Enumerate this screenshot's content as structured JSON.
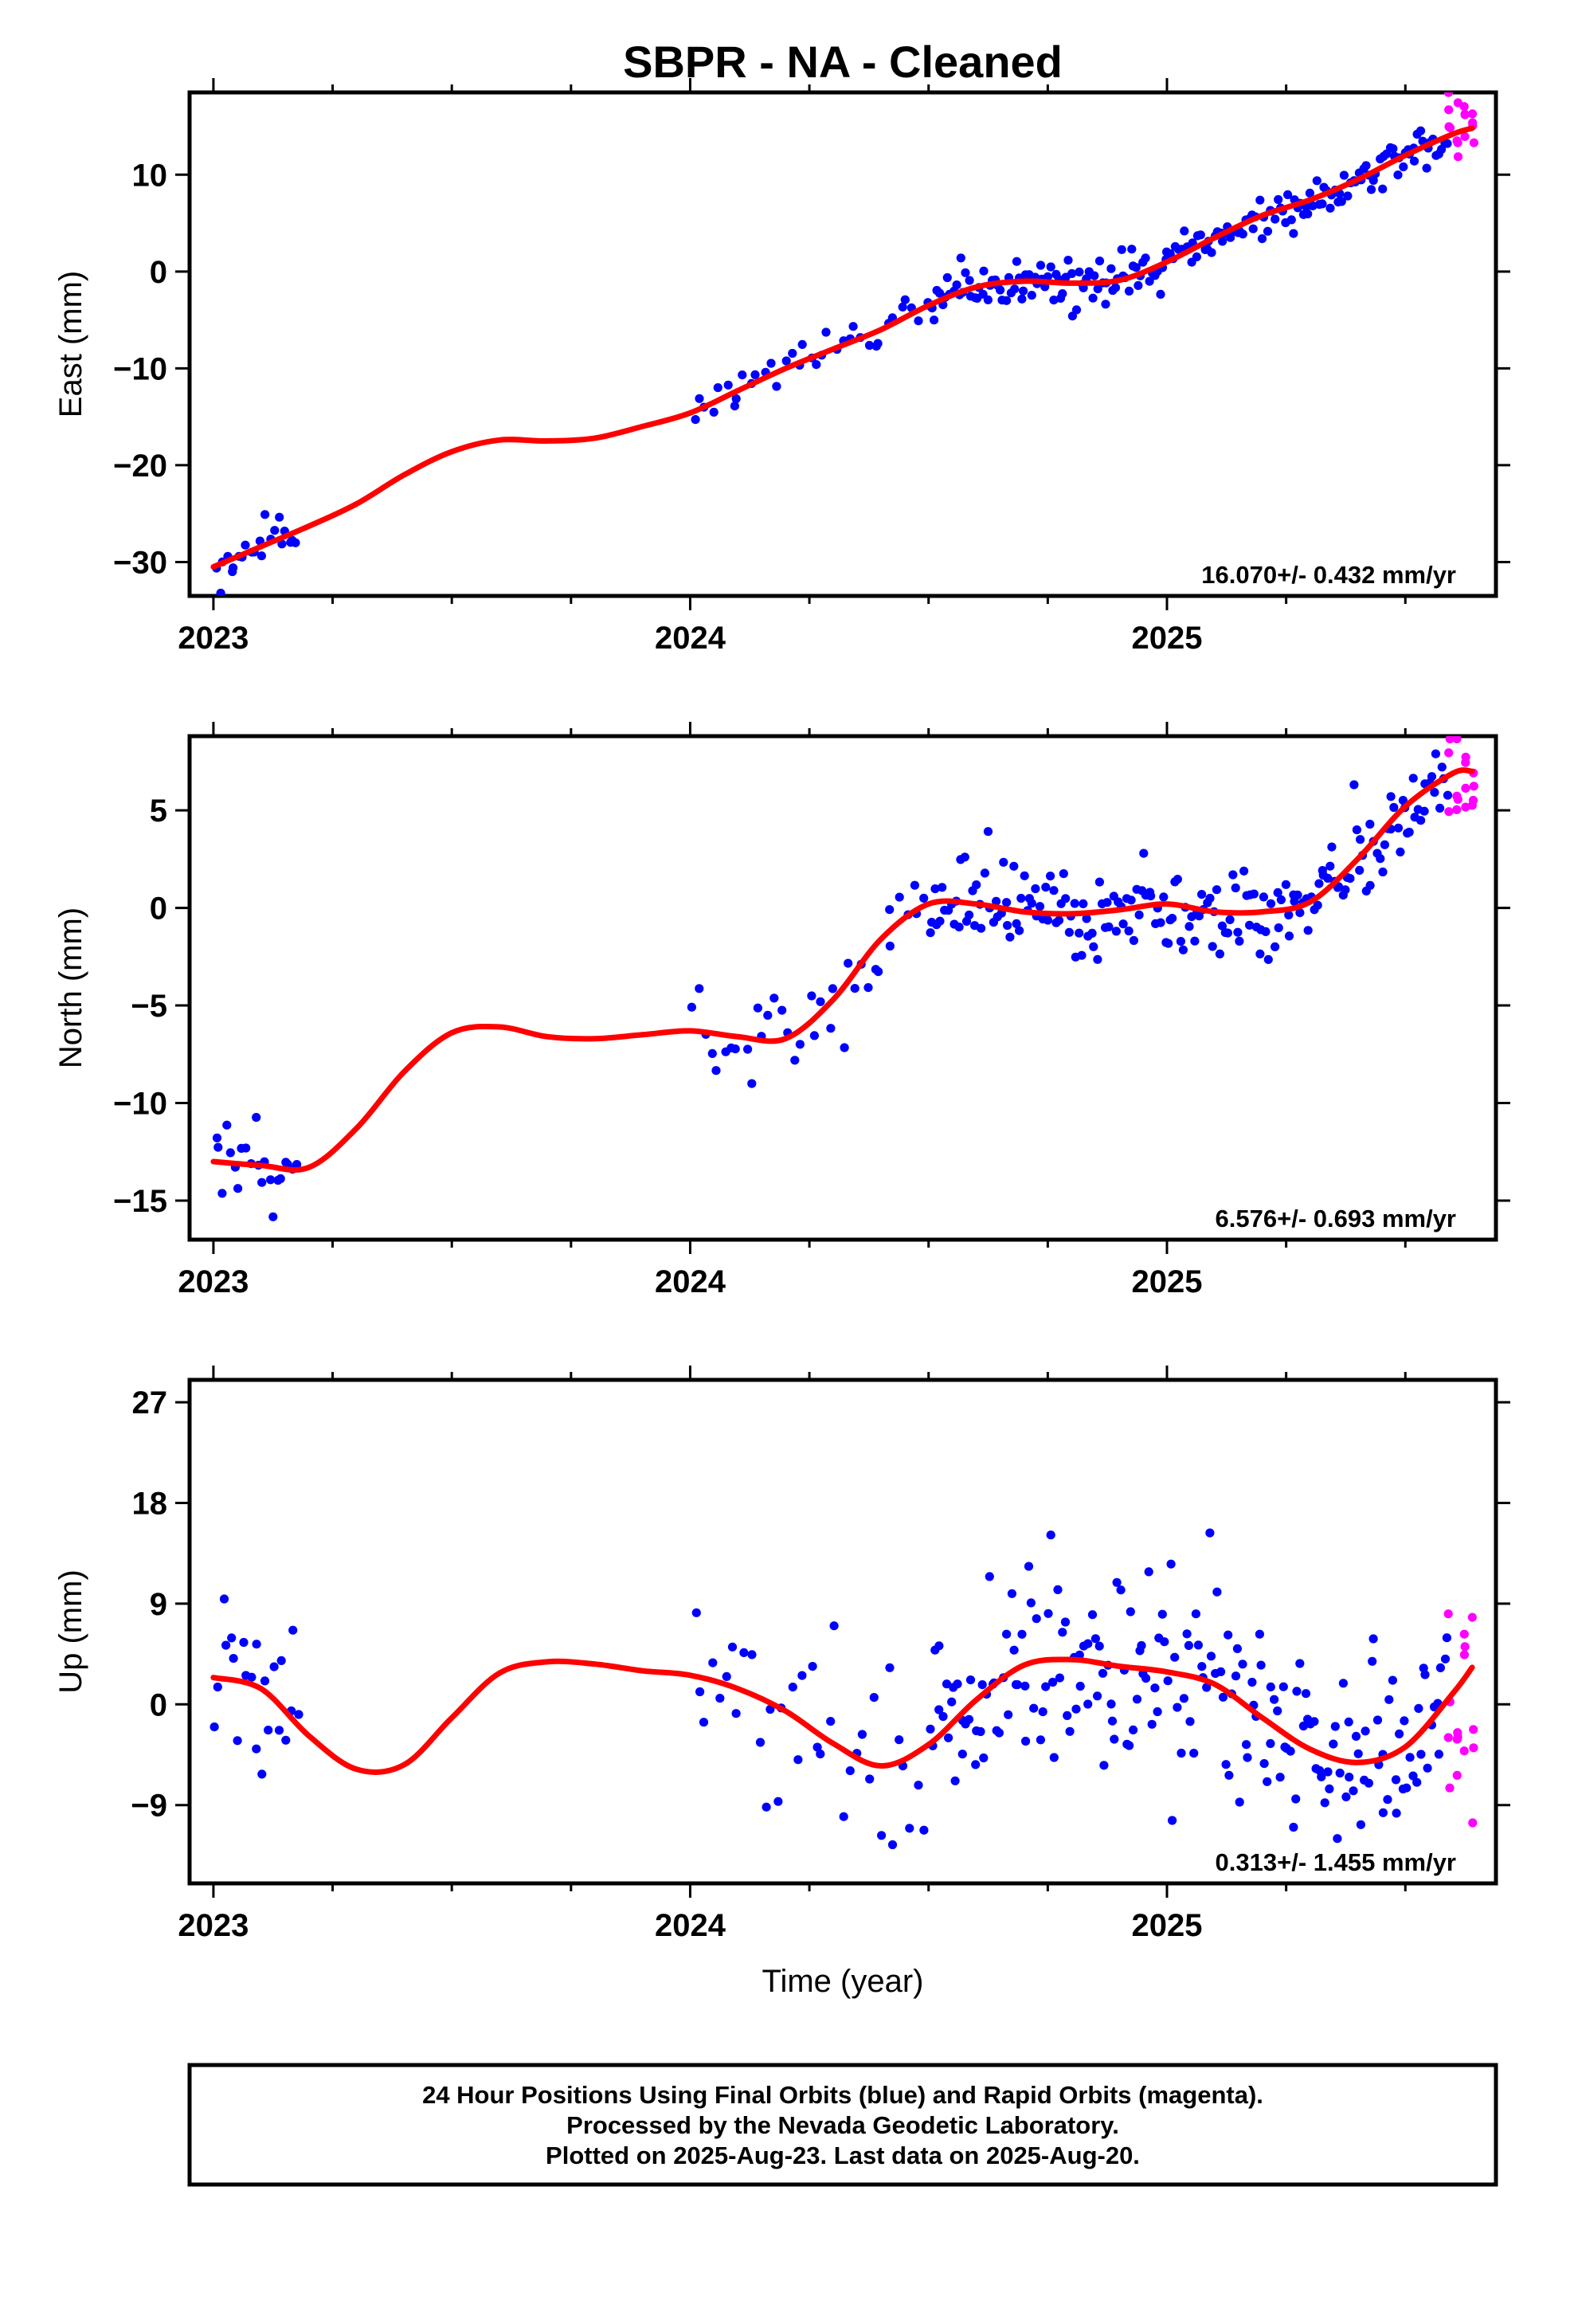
{
  "title": "SBPR  - NA - Cleaned",
  "colors": {
    "final": "#0000ff",
    "rapid": "#ff00ff",
    "model": "#ff0000",
    "frame": "#000000"
  },
  "x_axis": {
    "label": "Time (year)",
    "range": [
      2022.95,
      2025.69
    ],
    "ticks": [
      2023,
      2024,
      2025
    ],
    "tick_labels": [
      "2023",
      "2024",
      "2025"
    ],
    "minor_step": 0.25
  },
  "footer": {
    "lines": [
      "24 Hour Positions Using Final Orbits (blue) and Rapid Orbits (magenta).",
      "Processed by the Nevada Geodetic Laboratory.",
      "Plotted on 2025-Aug-23. Last data on 2025-Aug-20."
    ]
  },
  "chart_data": [
    {
      "type": "scatter",
      "component": "east",
      "ylabel": "East (mm)",
      "ylim": [
        -33.5,
        18.5
      ],
      "yticks": [
        -30,
        -20,
        -10,
        0,
        10
      ],
      "ytick_labels": [
        "−30",
        "−20",
        "−10",
        "0",
        "10"
      ],
      "rate_text": "16.070+/- 0.432 mm/yr",
      "scatter_sd": 1.2,
      "final_ranges": [
        [
          2023.0,
          2023.18,
          3
        ],
        [
          2024.0,
          2024.5,
          5
        ],
        [
          2024.5,
          2025.59,
          2
        ]
      ],
      "rapid_range": [
        2025.59,
        2025.64
      ],
      "rapid_sd": 2.2,
      "model": {
        "x": [
          2023.0,
          2023.1,
          2023.2,
          2023.3,
          2023.4,
          2023.5,
          2023.6,
          2023.7,
          2023.8,
          2023.9,
          2024.0,
          2024.1,
          2024.2,
          2024.3,
          2024.4,
          2024.5,
          2024.6,
          2024.7,
          2024.8,
          2024.9,
          2025.0,
          2025.1,
          2025.2,
          2025.3,
          2025.4,
          2025.5,
          2025.6,
          2025.64
        ],
        "y": [
          -30.5,
          -28.4,
          -26.3,
          -24.0,
          -21.0,
          -18.6,
          -17.4,
          -17.5,
          -17.2,
          -16.0,
          -14.6,
          -12.3,
          -10.0,
          -8.0,
          -6.0,
          -3.5,
          -1.6,
          -1.0,
          -1.2,
          -0.9,
          1.0,
          3.5,
          5.8,
          7.4,
          9.5,
          12.0,
          14.2,
          14.8
        ]
      }
    },
    {
      "type": "scatter",
      "component": "north",
      "ylabel": "North (mm)",
      "ylim": [
        -17.0,
        8.8
      ],
      "yticks": [
        -15,
        -10,
        -5,
        0,
        5
      ],
      "ytick_labels": [
        "−15",
        "−10",
        "−5",
        "0",
        "5"
      ],
      "rate_text": "6.576+/- 0.693 mm/yr",
      "scatter_sd": 1.2,
      "final_ranges": [
        [
          2023.0,
          2023.18,
          3
        ],
        [
          2024.0,
          2024.5,
          5
        ],
        [
          2024.5,
          2025.59,
          2
        ]
      ],
      "rapid_range": [
        2025.59,
        2025.64
      ],
      "rapid_sd": 1.8,
      "model": {
        "x": [
          2023.0,
          2023.1,
          2023.2,
          2023.3,
          2023.4,
          2023.5,
          2023.6,
          2023.7,
          2023.8,
          2023.9,
          2024.0,
          2024.1,
          2024.2,
          2024.3,
          2024.4,
          2024.5,
          2024.6,
          2024.7,
          2024.8,
          2024.9,
          2025.0,
          2025.1,
          2025.2,
          2025.3,
          2025.4,
          2025.5,
          2025.6,
          2025.64
        ],
        "y": [
          -13.0,
          -13.2,
          -13.3,
          -11.3,
          -8.4,
          -6.4,
          -6.1,
          -6.6,
          -6.7,
          -6.5,
          -6.3,
          -6.6,
          -6.7,
          -4.7,
          -1.6,
          0.2,
          0.2,
          -0.2,
          -0.3,
          -0.1,
          0.2,
          -0.2,
          -0.2,
          0.3,
          2.5,
          5.2,
          6.9,
          7.0
        ]
      }
    },
    {
      "type": "scatter",
      "component": "up",
      "ylabel": "Up (mm)",
      "ylim": [
        -16.0,
        29.0
      ],
      "yticks": [
        -9,
        0,
        9,
        18,
        27
      ],
      "ytick_labels": [
        "−9",
        "0",
        "9",
        "18",
        "27"
      ],
      "rate_text": "0.313+/- 1.455 mm/yr",
      "scatter_sd": 4.2,
      "final_ranges": [
        [
          2023.0,
          2023.18,
          3
        ],
        [
          2024.0,
          2024.5,
          5
        ],
        [
          2024.5,
          2025.59,
          2
        ]
      ],
      "rapid_range": [
        2025.59,
        2025.64
      ],
      "rapid_sd": 7.5,
      "model": {
        "x": [
          2023.0,
          2023.1,
          2023.2,
          2023.3,
          2023.4,
          2023.5,
          2023.6,
          2023.7,
          2023.8,
          2023.9,
          2024.0,
          2024.1,
          2024.2,
          2024.3,
          2024.4,
          2024.5,
          2024.6,
          2024.7,
          2024.8,
          2024.9,
          2025.0,
          2025.1,
          2025.2,
          2025.3,
          2025.4,
          2025.5,
          2025.6,
          2025.64
        ],
        "y": [
          2.4,
          1.4,
          -2.8,
          -5.8,
          -5.4,
          -1.2,
          2.8,
          3.8,
          3.6,
          3.0,
          2.6,
          1.4,
          -0.6,
          -3.5,
          -5.5,
          -3.6,
          0.4,
          3.5,
          4.0,
          3.4,
          2.9,
          1.8,
          -1.2,
          -4.0,
          -5.2,
          -3.8,
          1.0,
          3.3
        ]
      }
    }
  ]
}
